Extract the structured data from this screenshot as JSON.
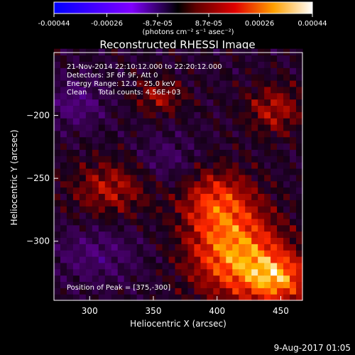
{
  "chart_data": {
    "type": "heatmap",
    "title": "Reconstructed RHESSI Image",
    "xlabel": "Heliocentric X (arcsec)",
    "ylabel": "Heliocentric Y (arcsec)",
    "xlim": [
      272,
      467
    ],
    "ylim": [
      -347,
      -150
    ],
    "x_ticks": [
      300,
      350,
      400,
      450
    ],
    "y_ticks": [
      -200,
      -250,
      -300
    ],
    "colorbar": {
      "range": [
        -0.00044,
        0.00044
      ],
      "tick_values": [
        -0.00044,
        -0.00026,
        -8.7e-05,
        8.7e-05,
        0.00026,
        0.00044
      ],
      "tick_labels": [
        "-0.00044",
        "-0.00026",
        "-8.7e-05",
        "8.7e-05",
        "0.00026",
        "0.00044"
      ],
      "units_label": "(photons cm⁻² s⁻¹ asec⁻²)"
    },
    "info_lines": [
      "21-Nov-2014 22:10:12.000 to 22:20:12.000",
      "Detectors: 3F 6F 9F, Att 0",
      "Energy Range: 12.0 - 25.0 keV",
      "Clean     Total counts: 4.56E+03"
    ],
    "peak_label": "Position of Peak = [375,-300]",
    "peak": {
      "x": 375,
      "y": -300
    },
    "sources": [
      {
        "x": 415,
        "y": -310,
        "sx": 26,
        "sy": 24,
        "amp": 0.00036
      },
      {
        "x": 448,
        "y": -330,
        "sx": 18,
        "sy": 14,
        "amp": 0.0003
      },
      {
        "x": 400,
        "y": -268,
        "sx": 20,
        "sy": 18,
        "amp": 0.00024
      },
      {
        "x": 316,
        "y": -258,
        "sx": 22,
        "sy": 16,
        "amp": 0.00018
      },
      {
        "x": 355,
        "y": -185,
        "sx": 14,
        "sy": 10,
        "amp": 0.00016
      },
      {
        "x": 445,
        "y": -195,
        "sx": 16,
        "sy": 14,
        "amp": 0.00018
      },
      {
        "x": 290,
        "y": -190,
        "sx": 16,
        "sy": 14,
        "amp": -0.00014
      },
      {
        "x": 305,
        "y": -310,
        "sx": 24,
        "sy": 16,
        "amp": -0.00012
      },
      {
        "x": 360,
        "y": -235,
        "sx": 16,
        "sy": 14,
        "amp": -0.0001
      }
    ]
  },
  "footer": {
    "date": "9-Aug-2017 01:05"
  }
}
